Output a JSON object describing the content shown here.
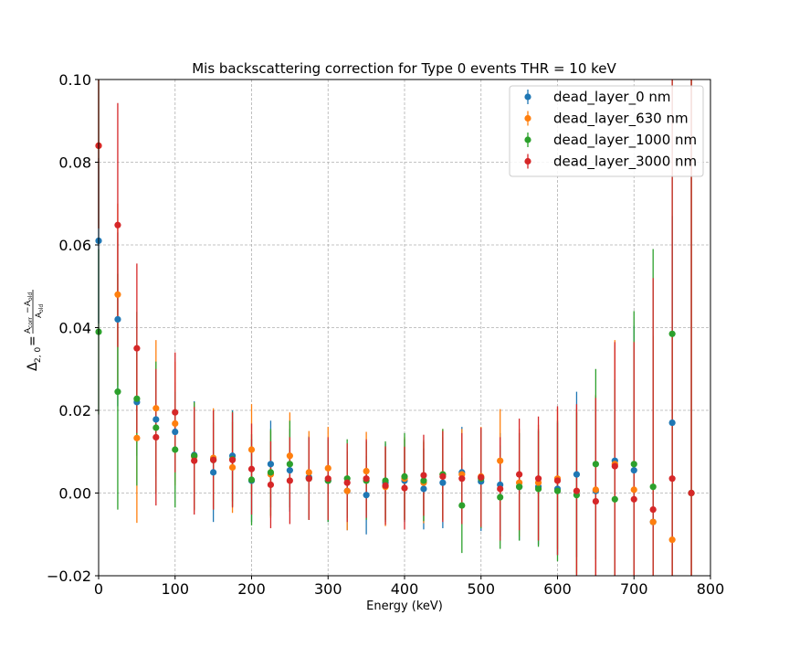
{
  "chart_data": {
    "type": "scatter",
    "title": "Mis backscattering correction for Type 0 events THR = 10 keV",
    "xlabel": "Energy (keV)",
    "ylabel_main": "Δ",
    "ylabel_sub": "2, 0",
    "ylabel_eq": "=",
    "ylabel_num": "A",
    "ylabel_num_sub1": "corr",
    "ylabel_minus": "−",
    "ylabel_num2": "A",
    "ylabel_num_sub2": "old",
    "ylabel_den": "A",
    "ylabel_den_sub": "old",
    "xlim": [
      0,
      800
    ],
    "ylim": [
      -0.02,
      0.1
    ],
    "xticks": [
      0,
      100,
      200,
      300,
      400,
      500,
      600,
      700,
      800
    ],
    "xtick_labels": [
      "0",
      "100",
      "200",
      "300",
      "400",
      "500",
      "600",
      "700",
      "800"
    ],
    "yticks": [
      -0.02,
      0.0,
      0.02,
      0.04,
      0.06,
      0.08,
      0.1
    ],
    "ytick_labels": [
      "−0.02",
      "0.00",
      "0.02",
      "0.04",
      "0.06",
      "0.08",
      "0.10"
    ],
    "grid": true,
    "legend_position": "top-right",
    "x": [
      0,
      25,
      50,
      75,
      100,
      125,
      150,
      175,
      200,
      225,
      250,
      275,
      300,
      325,
      350,
      375,
      400,
      425,
      450,
      475,
      500,
      525,
      550,
      575,
      600,
      625,
      650,
      675,
      700,
      725,
      750,
      775
    ],
    "series": [
      {
        "name": "dead_layer_0 nm",
        "color": "#1f77b4",
        "values": [
          0.061,
          0.042,
          0.022,
          0.0178,
          0.0148,
          0.0092,
          0.005,
          0.009,
          0.003,
          0.007,
          0.0055,
          0.0038,
          0.003,
          0.0005,
          -0.0005,
          0.0025,
          0.003,
          0.001,
          0.0025,
          0.005,
          0.0028,
          0.002,
          0.0015,
          0.0015,
          0.001,
          0.0045,
          0.0005,
          0.0078,
          0.0055,
          -0.007,
          0.017,
          0.0
        ],
        "errors": [
          0.02,
          0.021,
          0.013,
          0.012,
          0.012,
          0.013,
          0.012,
          0.011,
          0.01,
          0.0105,
          0.01,
          0.01,
          0.01,
          0.0095,
          0.0095,
          0.0095,
          0.01,
          0.0098,
          0.011,
          0.011,
          0.012,
          0.0125,
          0.013,
          0.014,
          0.016,
          0.02,
          0.023,
          0.028,
          0.035,
          0.045,
          0.05,
          0.11
        ]
      },
      {
        "name": "dead_layer_630 nm",
        "color": "#ff7f0e",
        "values": [
          0.084,
          0.048,
          0.0133,
          0.0205,
          0.0168,
          0.0088,
          0.0085,
          0.0062,
          0.0105,
          0.0045,
          0.009,
          0.005,
          0.006,
          0.0005,
          0.0053,
          0.0015,
          0.0035,
          0.0025,
          0.0045,
          0.0045,
          0.004,
          0.0078,
          0.0025,
          0.0025,
          0.0035,
          0.0005,
          0.0008,
          0.007,
          0.0008,
          -0.007,
          -0.0113,
          0.0
        ],
        "errors": [
          0.02,
          0.022,
          0.0205,
          0.0165,
          0.015,
          0.013,
          0.012,
          0.011,
          0.011,
          0.0105,
          0.0105,
          0.01,
          0.01,
          0.0095,
          0.0095,
          0.0095,
          0.01,
          0.0098,
          0.011,
          0.011,
          0.012,
          0.0125,
          0.013,
          0.014,
          0.017,
          0.02,
          0.023,
          0.03,
          0.036,
          0.045,
          0.05,
          0.11
        ]
      },
      {
        "name": "dead_layer_1000 nm",
        "color": "#2ca02c",
        "values": [
          0.039,
          0.0245,
          0.0228,
          0.0158,
          0.0105,
          0.009,
          0.008,
          0.0082,
          0.0032,
          0.005,
          0.007,
          0.0035,
          0.003,
          0.0035,
          0.003,
          0.003,
          0.004,
          0.003,
          0.0045,
          -0.003,
          0.0035,
          -0.001,
          0.0015,
          0.001,
          0.0005,
          -0.0005,
          0.007,
          -0.0015,
          0.007,
          0.0015,
          0.0385,
          0.0
        ],
        "errors": [
          0.02,
          0.0285,
          0.021,
          0.016,
          0.014,
          0.013,
          0.012,
          0.0115,
          0.011,
          0.0105,
          0.0105,
          0.01,
          0.01,
          0.0095,
          0.0095,
          0.0095,
          0.0105,
          0.0098,
          0.011,
          0.0115,
          0.012,
          0.0125,
          0.013,
          0.014,
          0.017,
          0.02,
          0.023,
          0.029,
          0.037,
          0.0575,
          0.07,
          0.11
        ]
      },
      {
        "name": "dead_layer_3000 nm",
        "color": "#d62728",
        "values": [
          0.084,
          0.0648,
          0.035,
          0.0135,
          0.0195,
          0.0078,
          0.008,
          0.008,
          0.0058,
          0.002,
          0.003,
          0.0035,
          0.0035,
          0.0025,
          0.0035,
          0.0018,
          0.0012,
          0.0043,
          0.004,
          0.0035,
          0.0038,
          0.001,
          0.0045,
          0.0035,
          0.003,
          0.0005,
          -0.002,
          0.0065,
          -0.0015,
          -0.004,
          0.0035,
          0.0
        ],
        "errors": [
          0.02,
          0.0295,
          0.0205,
          0.0165,
          0.0145,
          0.013,
          0.012,
          0.0115,
          0.011,
          0.0105,
          0.0105,
          0.01,
          0.01,
          0.0095,
          0.0095,
          0.0095,
          0.01,
          0.0098,
          0.011,
          0.011,
          0.012,
          0.0125,
          0.0135,
          0.015,
          0.018,
          0.021,
          0.025,
          0.03,
          0.038,
          0.056,
          0.11,
          0.11
        ]
      }
    ]
  }
}
